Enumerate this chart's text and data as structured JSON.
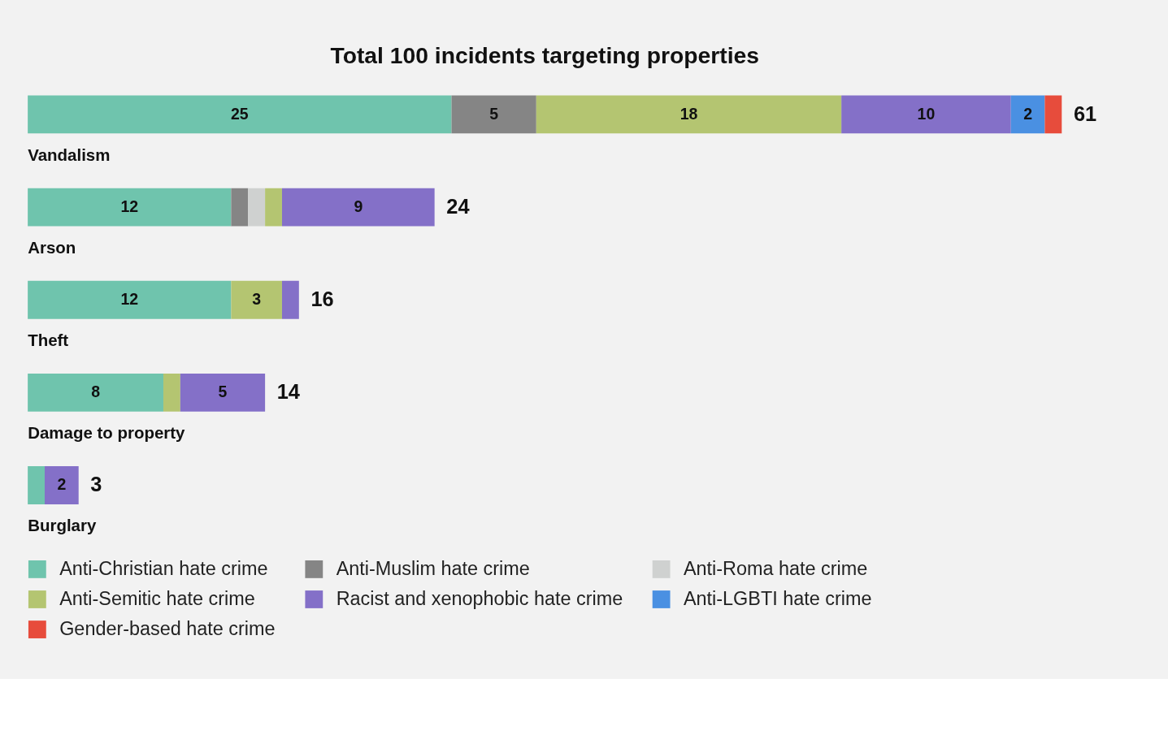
{
  "chart_data": {
    "type": "bar",
    "orientation": "horizontal",
    "stacked": true,
    "title": "Total 100 incidents targeting properties",
    "categories": [
      "Vandalism",
      "Arson",
      "Theft",
      "Damage to property",
      "Burglary"
    ],
    "series": [
      {
        "name": "Anti-Christian hate crime",
        "color": "#6fc4ad",
        "values": [
          25,
          12,
          12,
          8,
          1
        ],
        "value_labels": [
          "25",
          "12",
          "12",
          "8",
          null
        ]
      },
      {
        "name": "Anti-Muslim hate crime",
        "color": "#858585",
        "values": [
          5,
          1,
          null,
          null,
          null
        ],
        "value_labels": [
          "5",
          null,
          null,
          null,
          null
        ]
      },
      {
        "name": "Anti-Roma hate crime",
        "color": "#cfd1d0",
        "values": [
          null,
          1,
          null,
          null,
          null
        ],
        "value_labels": [
          null,
          null,
          null,
          null,
          null
        ]
      },
      {
        "name": "Anti-Semitic hate crime",
        "color": "#b4c571",
        "values": [
          18,
          1,
          3,
          1,
          null
        ],
        "value_labels": [
          "18",
          null,
          "3",
          null,
          null
        ]
      },
      {
        "name": "Racist and xenophobic hate crime",
        "color": "#8470c8",
        "values": [
          10,
          9,
          1,
          5,
          2
        ],
        "value_labels": [
          "10",
          "9",
          null,
          "5",
          "2"
        ]
      },
      {
        "name": "Anti-LGBTI hate crime",
        "color": "#4a90e2",
        "values": [
          2,
          null,
          null,
          null,
          null
        ],
        "value_labels": [
          "2",
          null,
          null,
          null,
          null
        ]
      },
      {
        "name": "Gender-based hate crime",
        "color": "#e74c3c",
        "values": [
          1,
          null,
          null,
          null,
          null
        ],
        "value_labels": [
          null,
          null,
          null,
          null,
          null
        ]
      }
    ],
    "totals": [
      "61",
      "24",
      "16",
      "14",
      "3"
    ],
    "legend": "bottom"
  }
}
